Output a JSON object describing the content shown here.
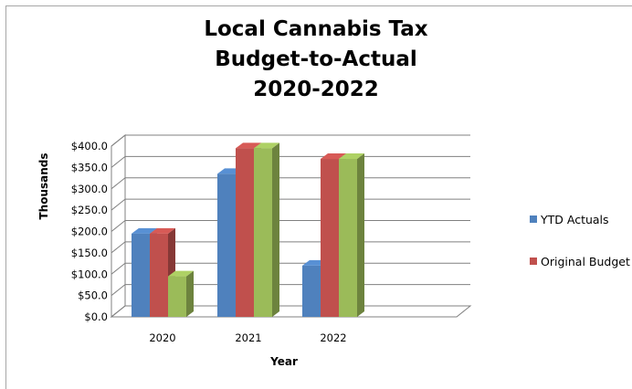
{
  "chart_data": {
    "type": "bar",
    "title_lines": [
      "Local Cannabis Tax",
      "Budget-to-Actual",
      "2020-2022"
    ],
    "categories": [
      "2020",
      "2021",
      "2022"
    ],
    "series": [
      {
        "name": "YTD Actuals",
        "values": [
          195,
          335,
          120
        ],
        "color": "#4f81bd"
      },
      {
        "name": "Original Budget",
        "values": [
          195,
          395,
          370
        ],
        "color": "#c0504d"
      },
      {
        "name": "",
        "values": [
          95,
          395,
          370
        ],
        "color": "#9bbb59"
      }
    ],
    "yticks": [
      "$0.0",
      "$50.0",
      "$100.0",
      "$150.0",
      "$200.0",
      "$250.0",
      "$300.0",
      "$350.0",
      "$400.0"
    ],
    "ylim": [
      0,
      400
    ],
    "xlabel": "Year",
    "ylabel": "Thousands",
    "legend_position": "right",
    "grid": true
  }
}
